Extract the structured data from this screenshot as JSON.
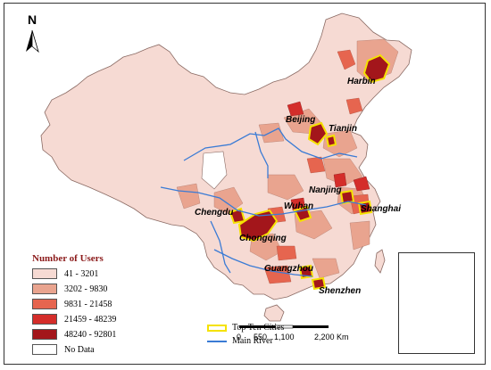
{
  "north_label": "N",
  "legend": {
    "title": "Number of Users",
    "classes": [
      {
        "label": "41 - 3201",
        "color": "#f6dad3"
      },
      {
        "label": "3202 - 9830",
        "color": "#e9a48f"
      },
      {
        "label": "9831 - 21458",
        "color": "#e6654f"
      },
      {
        "label": "21459 - 48239",
        "color": "#d42d2a"
      },
      {
        "label": "48240 - 92801",
        "color": "#a3161b"
      },
      {
        "label": "No Data",
        "color": "#ffffff"
      }
    ],
    "top_cities_label": "Top Ten Cities",
    "river_label": "Main River"
  },
  "scale": {
    "ticks": [
      "0",
      "550",
      "1,100",
      "2,200 Km"
    ]
  },
  "cities": [
    {
      "name": "Harbin"
    },
    {
      "name": "Beijing"
    },
    {
      "name": "Tianjin"
    },
    {
      "name": "Nanjing"
    },
    {
      "name": "Shanghai"
    },
    {
      "name": "Wuhan"
    },
    {
      "name": "Chengdu"
    },
    {
      "name": "Chongqing"
    },
    {
      "name": "Guangzhou"
    },
    {
      "name": "Shenzhen"
    }
  ]
}
